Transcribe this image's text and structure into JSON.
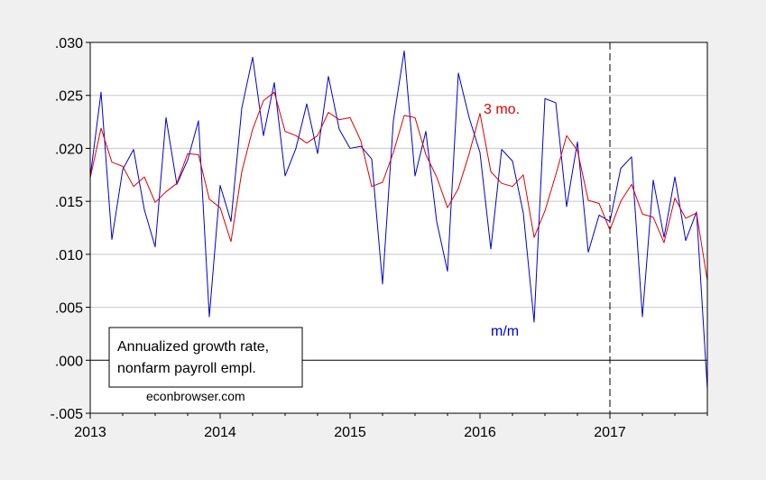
{
  "chart_data": {
    "type": "line",
    "title": "",
    "xlabel": "",
    "ylabel": "",
    "xlim": [
      2013.0,
      2017.75
    ],
    "ylim": [
      -0.005,
      0.03
    ],
    "grid": true,
    "y_ticks": [
      {
        "value": 0.03,
        "label": ".030"
      },
      {
        "value": 0.025,
        "label": ".025"
      },
      {
        "value": 0.02,
        "label": ".020"
      },
      {
        "value": 0.015,
        "label": ".015"
      },
      {
        "value": 0.01,
        "label": ".010"
      },
      {
        "value": 0.005,
        "label": ".005"
      },
      {
        "value": 0.0,
        "label": ".000"
      },
      {
        "value": -0.005,
        "label": "-.005"
      }
    ],
    "x_ticks": [
      {
        "value": 2013,
        "label": "2013"
      },
      {
        "value": 2014,
        "label": "2014"
      },
      {
        "value": 2015,
        "label": "2015"
      },
      {
        "value": 2016,
        "label": "2016"
      },
      {
        "value": 2017,
        "label": "2017"
      }
    ],
    "reference_lines": {
      "zero_value": 0.0,
      "vertical_dashed_x": 2017.0,
      "color": "#000000"
    },
    "x_start": "2013-01",
    "x_step": "monthly",
    "series": [
      {
        "name": "m/m",
        "color": "#0000cc",
        "values": [
          0.0173,
          0.0253,
          0.0114,
          0.018,
          0.0199,
          0.0142,
          0.0107,
          0.0229,
          0.0166,
          0.0189,
          0.0226,
          0.0041,
          0.0165,
          0.0131,
          0.0238,
          0.0286,
          0.0212,
          0.0262,
          0.0174,
          0.02,
          0.0242,
          0.0195,
          0.0268,
          0.0218,
          0.02,
          0.0202,
          0.019,
          0.0072,
          0.0226,
          0.0292,
          0.0174,
          0.0216,
          0.0131,
          0.0084,
          0.0271,
          0.0229,
          0.0196,
          0.0105,
          0.0199,
          0.0188,
          0.0139,
          0.0036,
          0.0247,
          0.0243,
          0.0145,
          0.0206,
          0.0102,
          0.0137,
          0.0131,
          0.0181,
          0.0192,
          0.0041,
          0.017,
          0.0116,
          0.0173,
          0.0113,
          0.014,
          -0.0027
        ]
      },
      {
        "name": "3 mo.",
        "color": "#dd0000",
        "values": [
          0.0172,
          0.0219,
          0.0187,
          0.0183,
          0.0164,
          0.0173,
          0.0149,
          0.0159,
          0.0167,
          0.0195,
          0.0194,
          0.0152,
          0.0144,
          0.0112,
          0.0178,
          0.0218,
          0.0245,
          0.0253,
          0.0216,
          0.0212,
          0.0205,
          0.0212,
          0.0234,
          0.0227,
          0.0229,
          0.0207,
          0.0164,
          0.0168,
          0.0196,
          0.0231,
          0.0229,
          0.0194,
          0.0173,
          0.0144,
          0.0162,
          0.0195,
          0.0233,
          0.0178,
          0.0167,
          0.0164,
          0.0175,
          0.0116,
          0.0141,
          0.0175,
          0.0212,
          0.0198,
          0.0151,
          0.0148,
          0.0123,
          0.015,
          0.0166,
          0.0138,
          0.0135,
          0.0111,
          0.0153,
          0.0134,
          0.0139,
          0.0075
        ]
      }
    ],
    "annotations": {
      "label_3mo": "3 mo.",
      "label_mm": "m/m",
      "legend_line1": "Annualized growth rate,",
      "legend_line2": "nonfarm payroll empl.",
      "source": "econbrowser.com"
    }
  }
}
